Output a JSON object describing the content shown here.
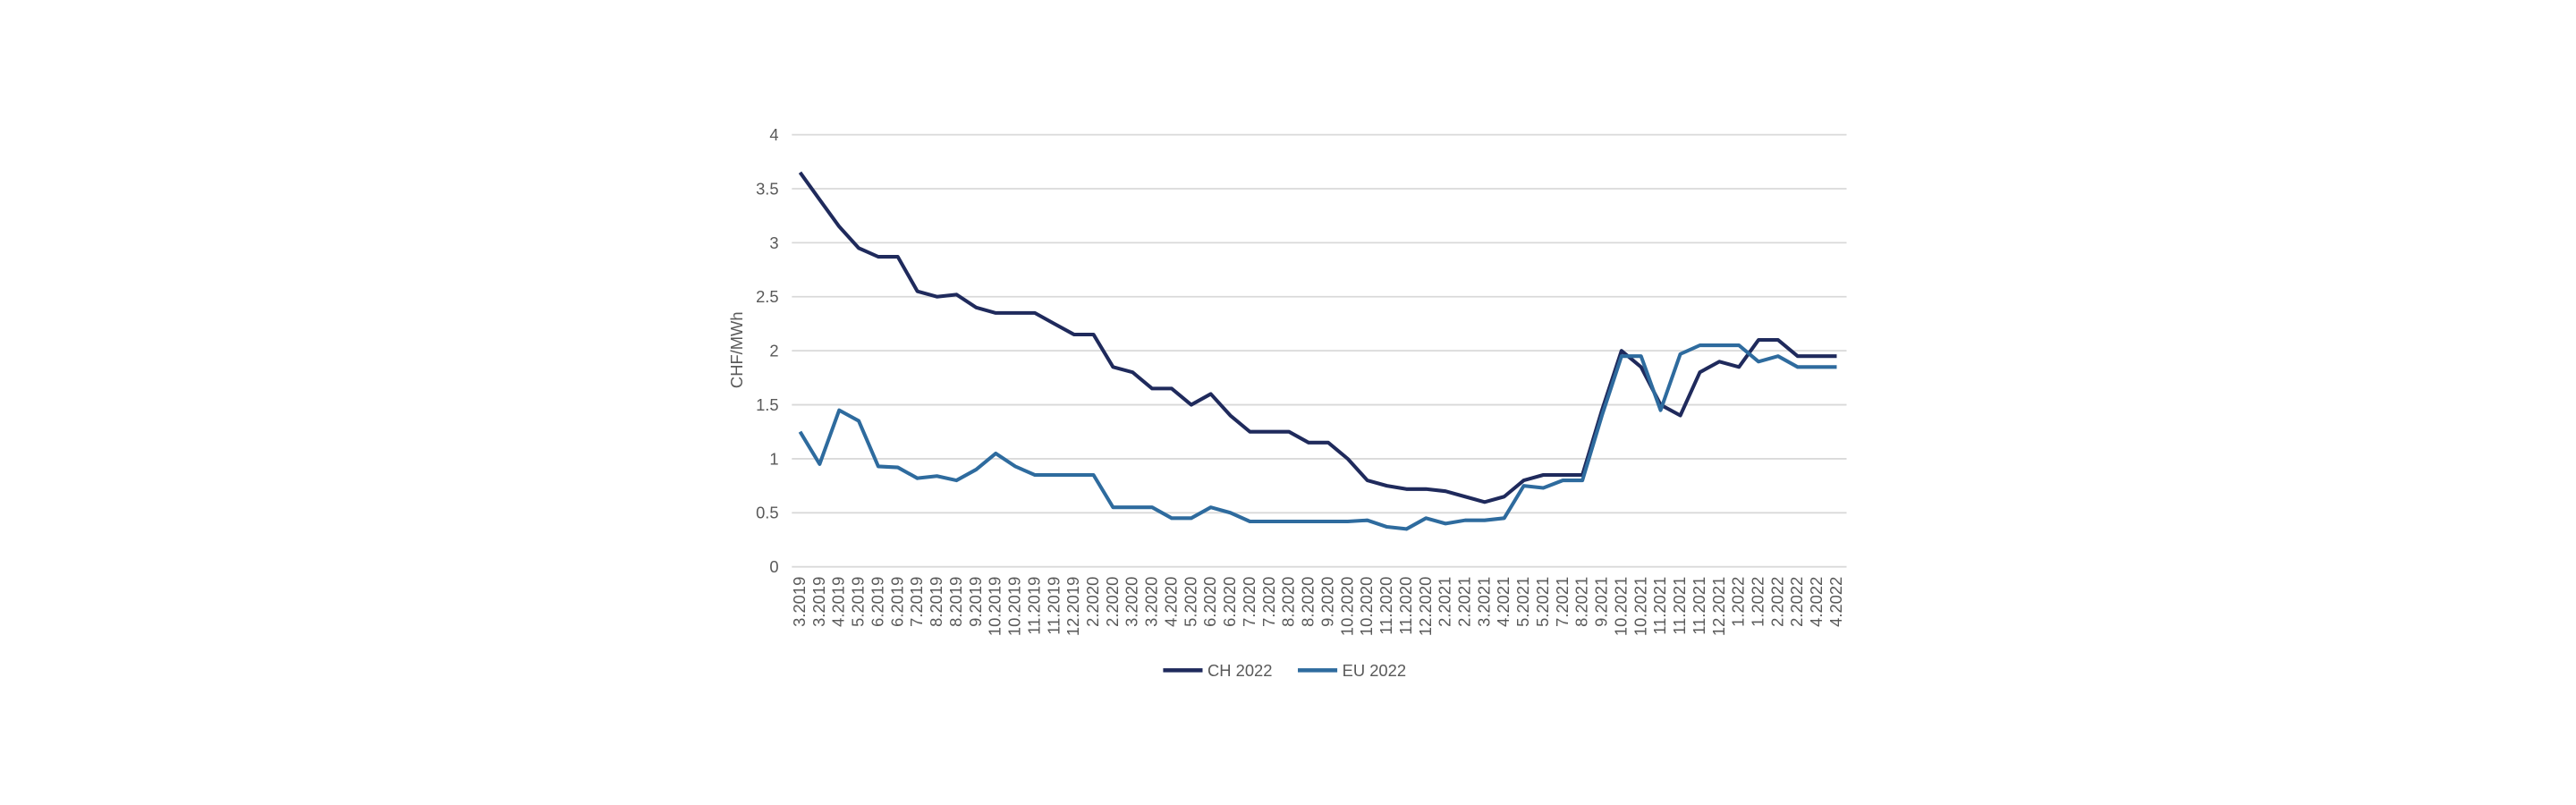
{
  "chart_data": {
    "type": "line",
    "y_label": "CHF/MWh",
    "categories": [
      "3.2019",
      "3.2019",
      "4.2019",
      "5.2019",
      "6.2019",
      "6.2019",
      "7.2019",
      "8.2019",
      "8.2019",
      "9.2019",
      "10.2019",
      "10.2019",
      "11.2019",
      "11.2019",
      "12.2019",
      "2.2020",
      "2.2020",
      "3.2020",
      "3.2020",
      "4.2020",
      "5.2020",
      "6.2020",
      "6.2020",
      "7.2020",
      "7.2020",
      "8.2020",
      "8.2020",
      "9.2020",
      "10.2020",
      "10.2020",
      "11.2020",
      "11.2020",
      "12.2020",
      "2.2021",
      "2.2021",
      "3.2021",
      "4.2021",
      "5.2021",
      "5.2021",
      "7.2021",
      "8.2021",
      "9.2021",
      "10.2021",
      "10.2021",
      "11.2021",
      "11.2021",
      "11.2021",
      "12.2021",
      "1.2022",
      "1.2022",
      "2.2022",
      "2.2022",
      "4.2022",
      "4.2022"
    ],
    "series": [
      {
        "name": "CH 2022",
        "color": "#1f2a5c",
        "values": [
          3.65,
          3.4,
          3.15,
          2.95,
          2.87,
          2.87,
          2.55,
          2.5,
          2.52,
          2.4,
          2.35,
          2.35,
          2.35,
          2.25,
          2.15,
          2.15,
          1.85,
          1.8,
          1.65,
          1.65,
          1.5,
          1.6,
          1.4,
          1.25,
          1.25,
          1.25,
          1.15,
          1.15,
          1.0,
          0.8,
          0.75,
          0.72,
          0.72,
          0.7,
          0.65,
          0.6,
          0.65,
          0.8,
          0.85,
          0.85,
          0.85,
          1.45,
          2.0,
          1.85,
          1.5,
          1.4,
          1.8,
          1.9,
          1.85,
          2.1,
          2.1,
          1.95,
          1.95,
          1.95
        ]
      },
      {
        "name": "EU 2022",
        "color": "#2e6b9e",
        "values": [
          1.25,
          0.95,
          1.45,
          1.35,
          0.93,
          0.92,
          0.82,
          0.84,
          0.8,
          0.9,
          1.05,
          0.93,
          0.85,
          0.85,
          0.85,
          0.85,
          0.55,
          0.55,
          0.55,
          0.45,
          0.45,
          0.55,
          0.5,
          0.42,
          0.42,
          0.42,
          0.42,
          0.42,
          0.42,
          0.43,
          0.37,
          0.35,
          0.45,
          0.4,
          0.43,
          0.43,
          0.45,
          0.75,
          0.73,
          0.8,
          0.8,
          1.4,
          1.95,
          1.95,
          1.45,
          1.97,
          2.05,
          2.05,
          2.05,
          1.9,
          1.95,
          1.85,
          1.85,
          1.85
        ]
      }
    ],
    "ylim": [
      0,
      4
    ],
    "yticks": [
      0,
      0.5,
      1,
      1.5,
      2,
      2.5,
      3,
      3.5,
      4
    ],
    "grid": true,
    "legend": "bottom"
  }
}
